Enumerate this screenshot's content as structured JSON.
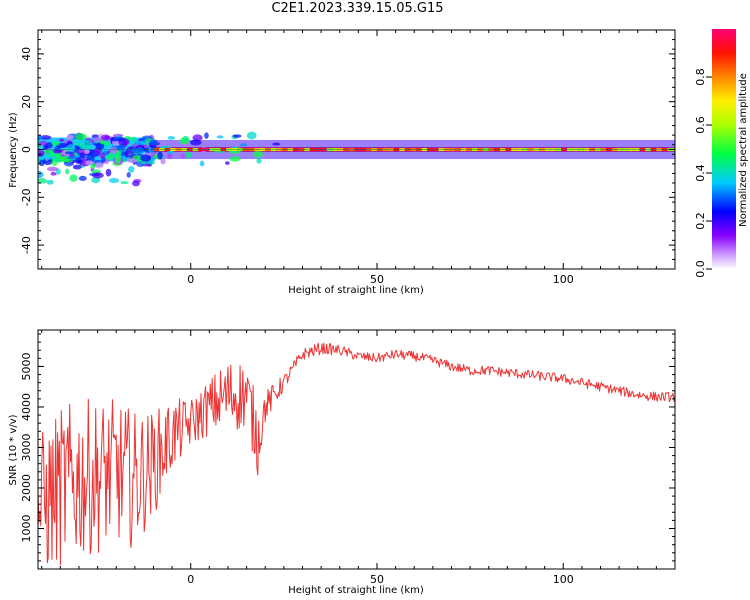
{
  "title": "C2E1.2023.339.15.05.G15",
  "chart_data": [
    {
      "type": "heatmap",
      "name": "spectrogram",
      "xlabel": "Height of straight line (km)",
      "ylabel": "Frequency (Hz)",
      "xlim": [
        -41,
        130
      ],
      "ylim": [
        -50,
        50
      ],
      "xticks": [
        0,
        50,
        100
      ],
      "yticks": [
        -40,
        -20,
        0,
        20,
        40
      ],
      "colorbar": {
        "label": "Normalized spectral amplitude",
        "range": [
          0.0,
          1.0
        ],
        "ticks": [
          0.0,
          0.2,
          0.4,
          0.6,
          0.8
        ],
        "tick_labels": [
          "0.0",
          "0.2",
          "0.4",
          "0.6",
          "0.8"
        ],
        "colormap": [
          "#ffffff",
          "#8800ff",
          "#0000ff",
          "#00ffff",
          "#00ff00",
          "#ffff00",
          "#ff8800",
          "#ff0000",
          "#ff0088"
        ]
      },
      "bands": [
        {
          "x": [
            -41,
            -10
          ],
          "freq_center": 0,
          "half_width": 5,
          "amplitude": 0.35
        },
        {
          "x": [
            -10,
            130
          ],
          "freq_center": 0,
          "half_width": 1,
          "amplitude": 0.9
        },
        {
          "x": [
            -10,
            130
          ],
          "freq_center": 0,
          "half_width": 4,
          "amplitude": 0.2
        }
      ]
    },
    {
      "type": "line",
      "name": "snr",
      "xlabel": "Height of straight line (km)",
      "ylabel": "SNR (10 * v/v)",
      "xlim": [
        -41,
        130
      ],
      "ylim": [
        0,
        5900
      ],
      "xticks": [
        0,
        50,
        100
      ],
      "yticks": [
        1000,
        2000,
        3000,
        4000,
        5000
      ],
      "color": "#ee3333",
      "x": [
        -41,
        -35,
        -30,
        -25,
        -20,
        -15,
        -10,
        -5,
        0,
        5,
        10,
        15,
        18,
        20,
        25,
        30,
        35,
        40,
        45,
        50,
        55,
        60,
        65,
        70,
        75,
        80,
        85,
        90,
        95,
        100,
        105,
        110,
        115,
        120,
        125,
        130
      ],
      "values": [
        1500,
        2000,
        2200,
        2300,
        2400,
        2200,
        2600,
        3300,
        3600,
        4000,
        4300,
        4300,
        3200,
        4000,
        4600,
        5300,
        5450,
        5400,
        5250,
        5200,
        5300,
        5250,
        5150,
        5000,
        4900,
        4900,
        4850,
        4800,
        4750,
        4700,
        4600,
        4500,
        4400,
        4300,
        4250,
        4250
      ],
      "noise_amplitude": [
        1800,
        2000,
        2000,
        1900,
        1800,
        1700,
        1300,
        900,
        600,
        700,
        900,
        900,
        900,
        400,
        200,
        150,
        150,
        130,
        120,
        120,
        120,
        120,
        120,
        120,
        120,
        120,
        120,
        120,
        120,
        120,
        120,
        120,
        120,
        120,
        120,
        120
      ]
    }
  ]
}
